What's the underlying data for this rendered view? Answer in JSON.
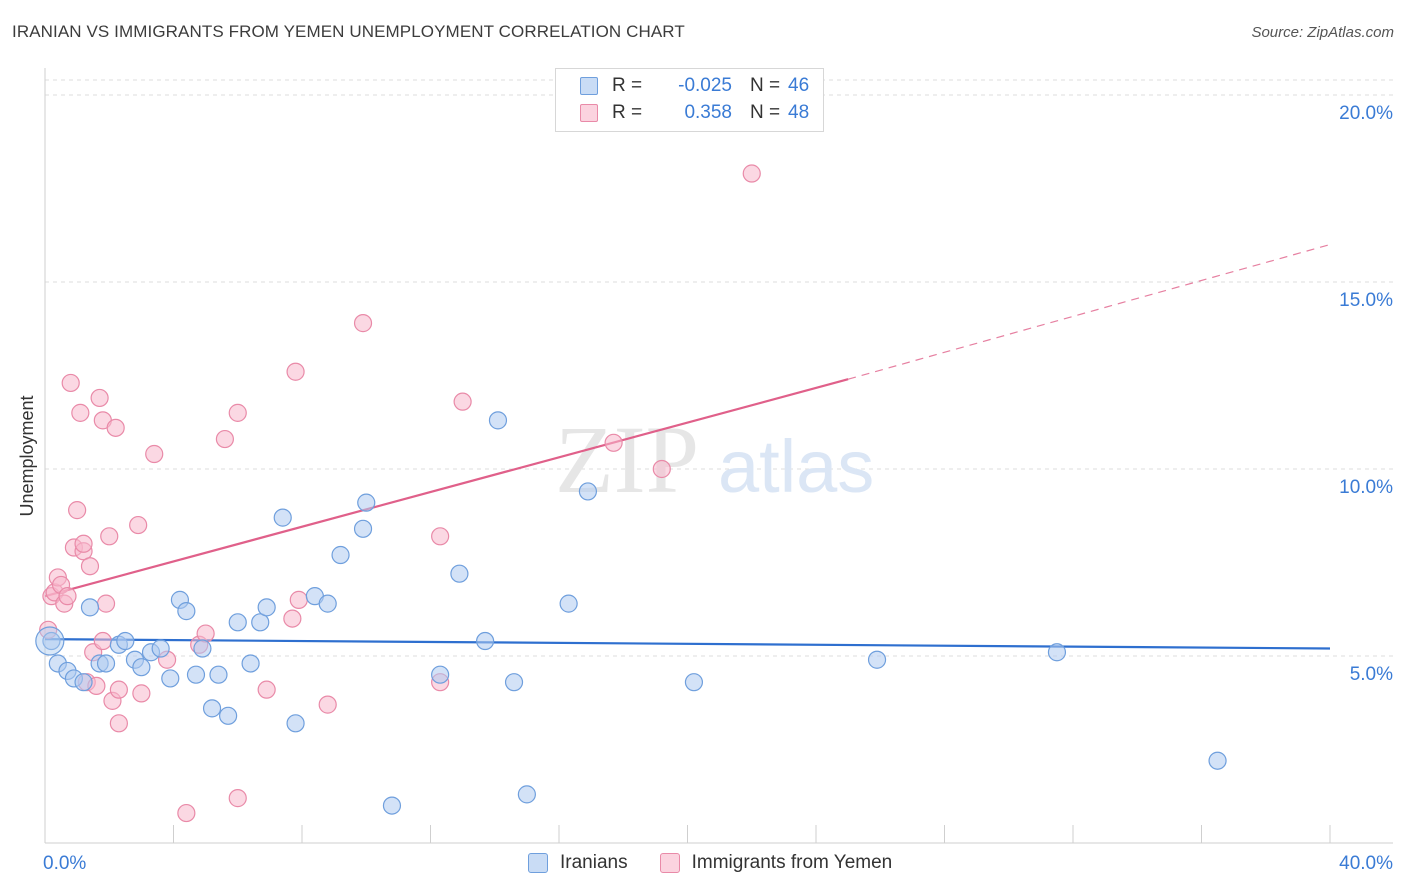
{
  "title": "IRANIAN VS IMMIGRANTS FROM YEMEN UNEMPLOYMENT CORRELATION CHART",
  "source": "Source: ZipAtlas.com",
  "watermark": {
    "zip": "ZIP",
    "atlas": "atlas"
  },
  "legend": {
    "r_label": "R =",
    "n_label": "N =",
    "rows": [
      {
        "r": "-0.025",
        "n": "46",
        "color": "#aecbf0"
      },
      {
        "r": "0.358",
        "n": "48",
        "color": "#f7b8cc"
      }
    ]
  },
  "colors": {
    "blue_fill": "#aecbf0",
    "blue_stroke": "#6f9fdd",
    "blue_line": "#2e6fcf",
    "pink_fill": "#f7b8cc",
    "pink_stroke": "#e98aa8",
    "pink_line": "#e0608a",
    "axis_text": "#3a7bd5",
    "grid": "#dedede"
  },
  "chart_data": {
    "type": "scatter",
    "title": "IRANIAN VS IMMIGRANTS FROM YEMEN UNEMPLOYMENT CORRELATION CHART",
    "xlabel": "",
    "ylabel": "Unemployment",
    "xlim": [
      0,
      40
    ],
    "ylim": [
      0,
      20.4
    ],
    "x_tick_labels": [
      "0.0%",
      "40.0%"
    ],
    "y_ticks": [
      5,
      10,
      15,
      20
    ],
    "y_tick_labels": [
      "5.0%",
      "10.0%",
      "15.0%",
      "20.0%"
    ],
    "grid": true,
    "series": [
      {
        "name": "Iranians",
        "r": -0.025,
        "n": 46,
        "trend": {
          "x": [
            0,
            40
          ],
          "y": [
            5.45,
            5.2
          ],
          "dashed_extension": false
        },
        "points": [
          [
            0.2,
            5.4
          ],
          [
            0.4,
            4.8
          ],
          [
            0.7,
            4.6
          ],
          [
            0.9,
            4.4
          ],
          [
            1.2,
            4.3
          ],
          [
            1.4,
            6.3
          ],
          [
            1.7,
            4.8
          ],
          [
            1.9,
            4.8
          ],
          [
            2.3,
            5.3
          ],
          [
            2.5,
            5.4
          ],
          [
            2.8,
            4.9
          ],
          [
            3.0,
            4.7
          ],
          [
            3.3,
            5.1
          ],
          [
            3.6,
            5.2
          ],
          [
            3.9,
            4.4
          ],
          [
            4.2,
            6.5
          ],
          [
            4.4,
            6.2
          ],
          [
            4.7,
            4.5
          ],
          [
            4.9,
            5.2
          ],
          [
            5.2,
            3.6
          ],
          [
            5.4,
            4.5
          ],
          [
            5.7,
            3.4
          ],
          [
            6.0,
            5.9
          ],
          [
            6.4,
            4.8
          ],
          [
            6.7,
            5.9
          ],
          [
            6.9,
            6.3
          ],
          [
            7.4,
            8.7
          ],
          [
            7.8,
            3.2
          ],
          [
            8.4,
            6.6
          ],
          [
            8.8,
            6.4
          ],
          [
            9.2,
            7.7
          ],
          [
            9.9,
            8.4
          ],
          [
            10.0,
            9.1
          ],
          [
            10.8,
            1.0
          ],
          [
            12.3,
            4.5
          ],
          [
            12.9,
            7.2
          ],
          [
            13.7,
            5.4
          ],
          [
            14.1,
            11.3
          ],
          [
            14.6,
            4.3
          ],
          [
            15.0,
            1.3
          ],
          [
            16.3,
            6.4
          ],
          [
            16.9,
            9.4
          ],
          [
            20.2,
            4.3
          ],
          [
            25.9,
            4.9
          ],
          [
            31.5,
            5.1
          ],
          [
            36.5,
            2.2
          ]
        ]
      },
      {
        "name": "Immigrants from Yemen",
        "r": 0.358,
        "n": 48,
        "trend": {
          "x": [
            0,
            25
          ],
          "y": [
            6.6,
            12.4
          ],
          "dashed_to": [
            40,
            16.0
          ]
        },
        "points": [
          [
            0.1,
            5.7
          ],
          [
            0.2,
            6.6
          ],
          [
            0.3,
            6.7
          ],
          [
            0.4,
            7.1
          ],
          [
            0.5,
            6.9
          ],
          [
            0.6,
            6.4
          ],
          [
            0.7,
            6.6
          ],
          [
            0.8,
            12.3
          ],
          [
            0.9,
            7.9
          ],
          [
            1.0,
            8.9
          ],
          [
            1.1,
            11.5
          ],
          [
            1.2,
            7.8
          ],
          [
            1.2,
            8.0
          ],
          [
            1.3,
            4.3
          ],
          [
            1.4,
            7.4
          ],
          [
            1.5,
            5.1
          ],
          [
            1.6,
            4.2
          ],
          [
            1.7,
            11.9
          ],
          [
            1.8,
            5.4
          ],
          [
            1.8,
            11.3
          ],
          [
            1.9,
            6.4
          ],
          [
            2.0,
            8.2
          ],
          [
            2.1,
            3.8
          ],
          [
            2.2,
            11.1
          ],
          [
            2.3,
            4.1
          ],
          [
            2.3,
            3.2
          ],
          [
            2.9,
            8.5
          ],
          [
            3.0,
            4.0
          ],
          [
            3.4,
            10.4
          ],
          [
            3.8,
            4.9
          ],
          [
            4.4,
            0.8
          ],
          [
            4.8,
            5.3
          ],
          [
            5.0,
            5.6
          ],
          [
            5.6,
            10.8
          ],
          [
            6.0,
            11.5
          ],
          [
            6.0,
            1.2
          ],
          [
            6.9,
            4.1
          ],
          [
            7.7,
            6.0
          ],
          [
            7.8,
            12.6
          ],
          [
            7.9,
            6.5
          ],
          [
            8.8,
            3.7
          ],
          [
            9.9,
            13.9
          ],
          [
            12.3,
            8.2
          ],
          [
            12.3,
            4.3
          ],
          [
            13.0,
            11.8
          ],
          [
            17.7,
            10.7
          ],
          [
            19.2,
            10.0
          ],
          [
            22.0,
            17.9
          ]
        ]
      }
    ]
  }
}
